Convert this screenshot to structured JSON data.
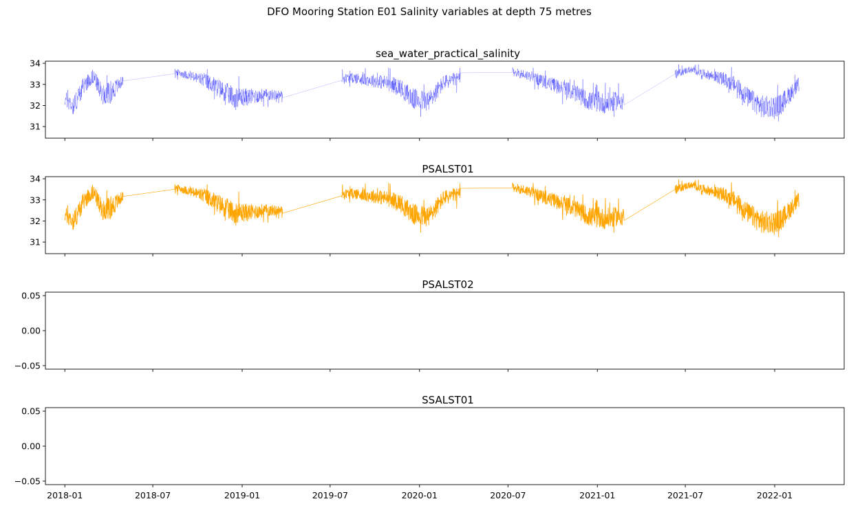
{
  "figure": {
    "title": "DFO Mooring Station E01 Salinity variables at depth 75 metres"
  },
  "x_axis": {
    "ticks": [
      "2018-01",
      "2018-07",
      "2019-01",
      "2019-07",
      "2020-01",
      "2020-07",
      "2021-01",
      "2021-07",
      "2022-01"
    ],
    "range": [
      "2017-11-22",
      "2022-05-24"
    ]
  },
  "chart_data": [
    {
      "type": "line",
      "title": "sea_water_practical_salinity",
      "color": "#0000ff",
      "ylim": [
        30.45,
        34.1
      ],
      "yticks": [
        "31",
        "32",
        "33",
        "34"
      ],
      "series": [
        {
          "segments": [
            {
              "dates": [
                "2018-01-01",
                "2018-01-20",
                "2018-02-10",
                "2018-03-01",
                "2018-03-20",
                "2018-04-10",
                "2018-05-01"
              ],
              "center": [
                32.3,
                32.0,
                33.0,
                33.4,
                32.5,
                32.7,
                33.2
              ],
              "spread": [
                0.35,
                0.5,
                0.4,
                0.35,
                0.45,
                0.5,
                0.2
              ]
            },
            {
              "dates": [
                "2018-08-15",
                "2018-09-15",
                "2018-10-15",
                "2018-11-15",
                "2018-12-15",
                "2019-01-15",
                "2019-02-15",
                "2019-03-25"
              ],
              "center": [
                33.6,
                33.4,
                33.2,
                32.8,
                32.4,
                32.4,
                32.5,
                32.5
              ],
              "spread": [
                0.15,
                0.2,
                0.35,
                0.45,
                0.5,
                0.4,
                0.3,
                0.2
              ]
            },
            {
              "dates": [
                "2019-07-25",
                "2019-08-20",
                "2019-09-20",
                "2019-10-20",
                "2019-11-20",
                "2019-12-20",
                "2020-01-20",
                "2020-02-20",
                "2020-03-25"
              ],
              "center": [
                33.3,
                33.3,
                33.2,
                33.1,
                32.9,
                32.3,
                32.2,
                33.1,
                33.3
              ],
              "spread": [
                0.2,
                0.25,
                0.3,
                0.35,
                0.4,
                0.5,
                0.5,
                0.35,
                0.3
              ]
            },
            {
              "dates": [
                "2020-07-10",
                "2020-08-15",
                "2020-09-15",
                "2020-10-15",
                "2020-11-15",
                "2020-12-15",
                "2021-01-20",
                "2021-02-25"
              ],
              "center": [
                33.6,
                33.4,
                33.1,
                32.9,
                32.6,
                32.2,
                32.1,
                32.3
              ],
              "spread": [
                0.2,
                0.25,
                0.3,
                0.35,
                0.4,
                0.45,
                0.5,
                0.4
              ]
            },
            {
              "dates": [
                "2021-06-10",
                "2021-07-10",
                "2021-08-10",
                "2021-09-10",
                "2021-10-10",
                "2021-11-10",
                "2021-12-10",
                "2022-01-10",
                "2022-02-20"
              ],
              "center": [
                33.5,
                33.7,
                33.5,
                33.3,
                33.0,
                32.3,
                31.9,
                32.0,
                33.0
              ],
              "spread": [
                0.2,
                0.15,
                0.2,
                0.3,
                0.4,
                0.5,
                0.55,
                0.5,
                0.35
              ]
            }
          ]
        }
      ]
    },
    {
      "type": "line",
      "title": "PSALST01",
      "color": "#ffa500",
      "ylim": [
        30.45,
        34.1
      ],
      "yticks": [
        "31",
        "32",
        "33",
        "34"
      ],
      "series": [
        {
          "segments": [
            {
              "dates": [
                "2018-01-01",
                "2018-01-20",
                "2018-02-10",
                "2018-03-01",
                "2018-03-20",
                "2018-04-10",
                "2018-05-01"
              ],
              "center": [
                32.3,
                32.0,
                33.0,
                33.4,
                32.5,
                32.7,
                33.2
              ],
              "spread": [
                0.35,
                0.5,
                0.4,
                0.35,
                0.45,
                0.5,
                0.2
              ]
            },
            {
              "dates": [
                "2018-08-15",
                "2018-09-15",
                "2018-10-15",
                "2018-11-15",
                "2018-12-15",
                "2019-01-15",
                "2019-02-15",
                "2019-03-25"
              ],
              "center": [
                33.6,
                33.4,
                33.2,
                32.8,
                32.4,
                32.4,
                32.5,
                32.5
              ],
              "spread": [
                0.15,
                0.2,
                0.35,
                0.45,
                0.5,
                0.4,
                0.3,
                0.2
              ]
            },
            {
              "dates": [
                "2019-07-25",
                "2019-08-20",
                "2019-09-20",
                "2019-10-20",
                "2019-11-20",
                "2019-12-20",
                "2020-01-20",
                "2020-02-20",
                "2020-03-25"
              ],
              "center": [
                33.3,
                33.3,
                33.2,
                33.1,
                32.9,
                32.3,
                32.2,
                33.1,
                33.3
              ],
              "spread": [
                0.2,
                0.25,
                0.3,
                0.35,
                0.4,
                0.5,
                0.5,
                0.35,
                0.3
              ]
            },
            {
              "dates": [
                "2020-07-10",
                "2020-08-15",
                "2020-09-15",
                "2020-10-15",
                "2020-11-15",
                "2020-12-15",
                "2021-01-20",
                "2021-02-25"
              ],
              "center": [
                33.6,
                33.4,
                33.1,
                32.9,
                32.6,
                32.2,
                32.1,
                32.3
              ],
              "spread": [
                0.2,
                0.25,
                0.3,
                0.35,
                0.4,
                0.45,
                0.5,
                0.4
              ]
            },
            {
              "dates": [
                "2021-06-10",
                "2021-07-10",
                "2021-08-10",
                "2021-09-10",
                "2021-10-10",
                "2021-11-10",
                "2021-12-10",
                "2022-01-10",
                "2022-02-20"
              ],
              "center": [
                33.5,
                33.7,
                33.5,
                33.3,
                33.0,
                32.3,
                31.9,
                32.0,
                33.0
              ],
              "spread": [
                0.2,
                0.15,
                0.2,
                0.3,
                0.4,
                0.5,
                0.55,
                0.5,
                0.35
              ]
            }
          ]
        }
      ]
    },
    {
      "type": "line",
      "title": "PSALST02",
      "color": "#1f77b4",
      "ylim": [
        -0.055,
        0.055
      ],
      "yticks": [
        "0.05",
        "0.00",
        "−0.05"
      ],
      "series": []
    },
    {
      "type": "line",
      "title": "SSALST01",
      "color": "#1f77b4",
      "ylim": [
        -0.055,
        0.055
      ],
      "yticks": [
        "0.05",
        "0.00",
        "−0.05"
      ],
      "series": []
    }
  ]
}
